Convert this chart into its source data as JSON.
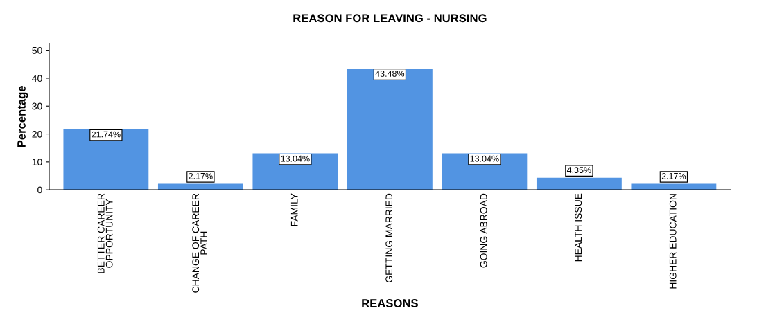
{
  "chart_data": {
    "type": "bar",
    "title": "REASON FOR LEAVING - NURSING",
    "xlabel": "REASONS",
    "ylabel": "Percentage",
    "categories": [
      "BETTER CAREER\nOPPORTUNITY",
      "CHANGE OF CAREER\nPATH",
      "FAMILY",
      "GETTING MARRIED",
      "GOING ABROAD",
      "HEALTH ISSUE",
      "HIGHER EDUCATION"
    ],
    "values": [
      21.74,
      2.17,
      13.04,
      43.48,
      13.04,
      4.35,
      2.17
    ],
    "value_labels": [
      "21.74%",
      "2.17%",
      "13.04%",
      "43.48%",
      "13.04%",
      "4.35%",
      "2.17%"
    ],
    "color": "#5294e2",
    "ylim": [
      0,
      52.5
    ],
    "yticks": [
      0,
      10,
      20,
      30,
      40,
      50
    ],
    "grid": false,
    "legend": false
  }
}
